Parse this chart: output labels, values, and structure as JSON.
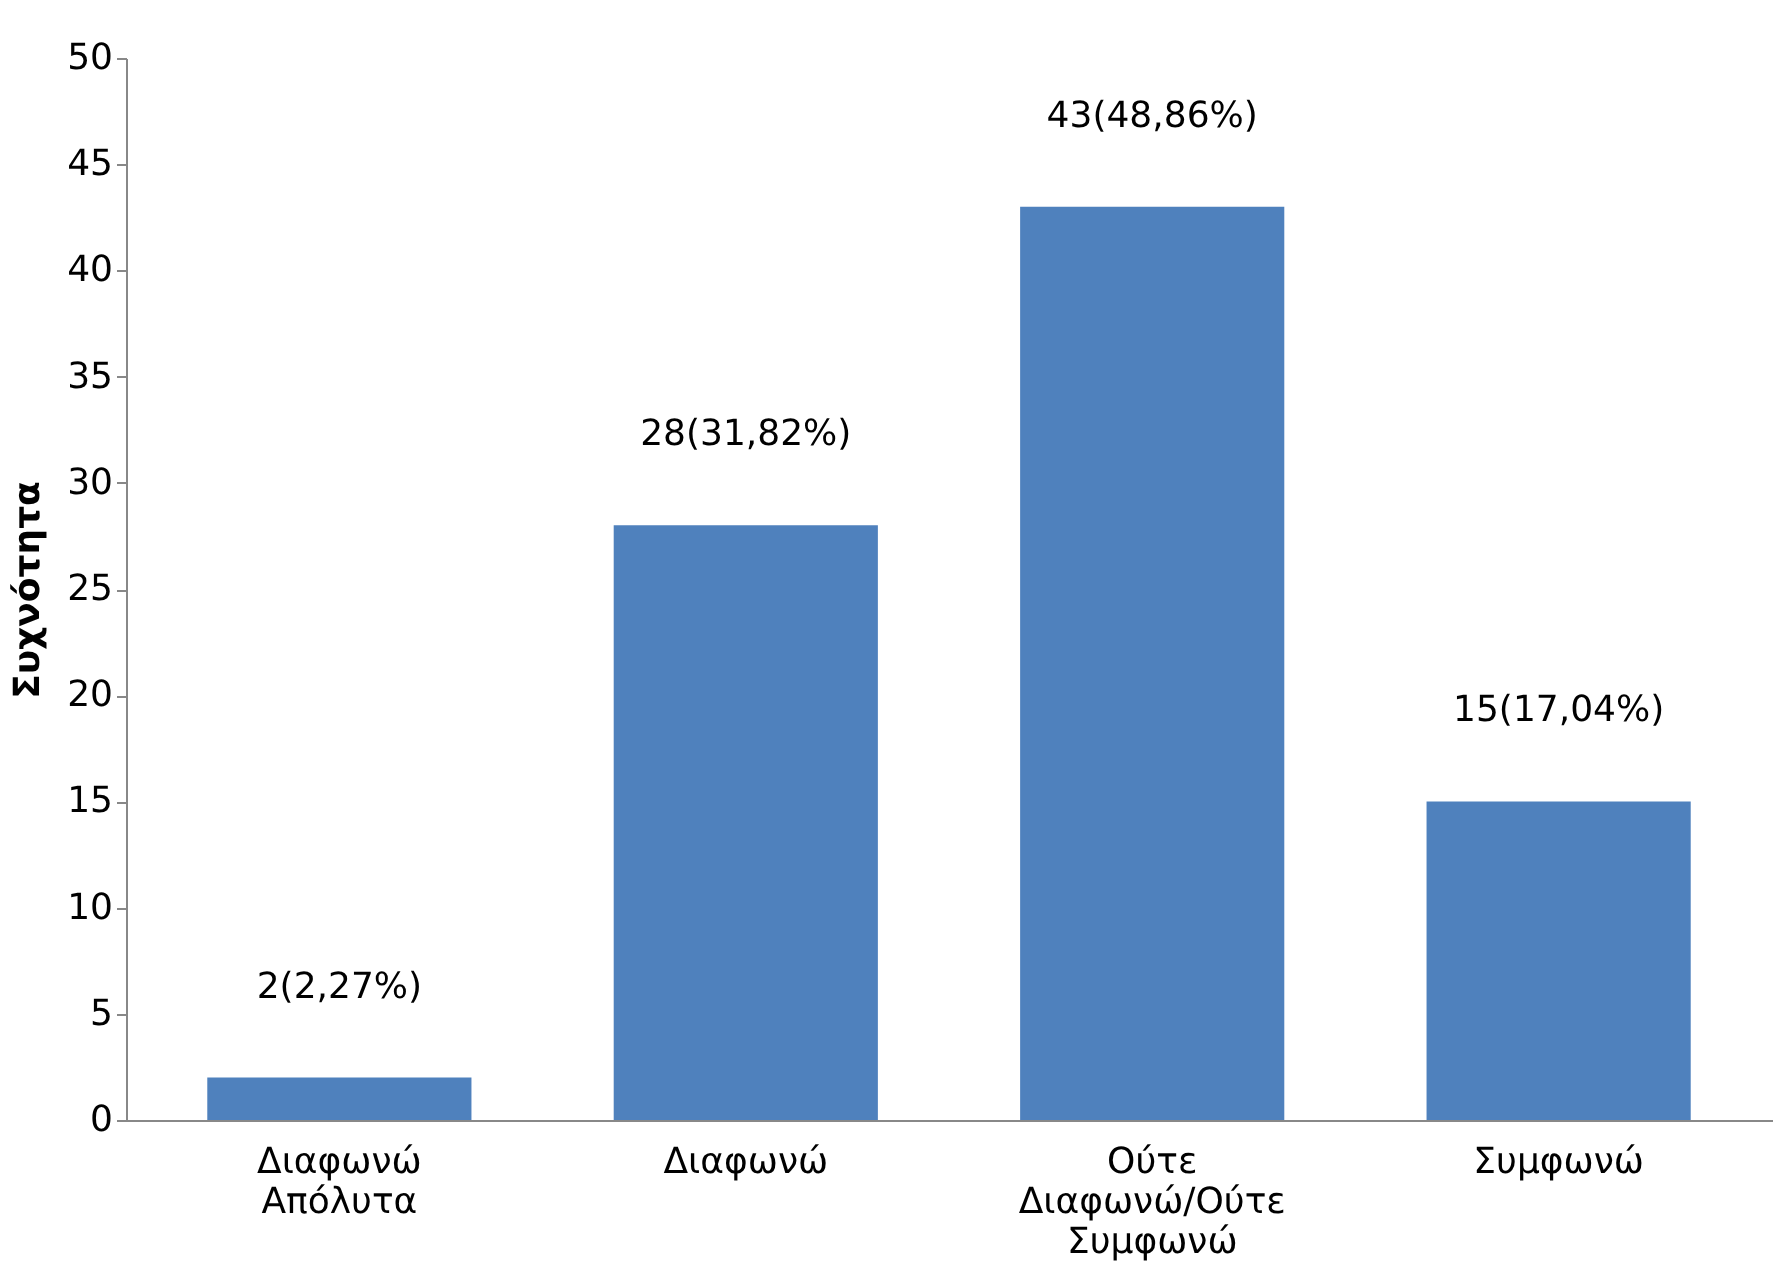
{
  "chart_data": {
    "type": "bar",
    "ylabel": "Συχνότητα",
    "categories": [
      "Διαφωνώ Απόλυτα",
      "Διαφωνώ",
      "Ούτε Διαφωνώ/Ούτε Συμφωνώ",
      "Συμφωνώ"
    ],
    "values": [
      2,
      28,
      43,
      15
    ],
    "value_labels": [
      "2(2,27%)",
      "28(31,82%)",
      "43(48,86%)",
      "15(17,04%)"
    ],
    "color": "#4f81bd",
    "ylim": [
      0,
      50
    ],
    "yticks": [
      0,
      5,
      10,
      15,
      20,
      25,
      30,
      35,
      40,
      45,
      50
    ],
    "grid": false
  }
}
